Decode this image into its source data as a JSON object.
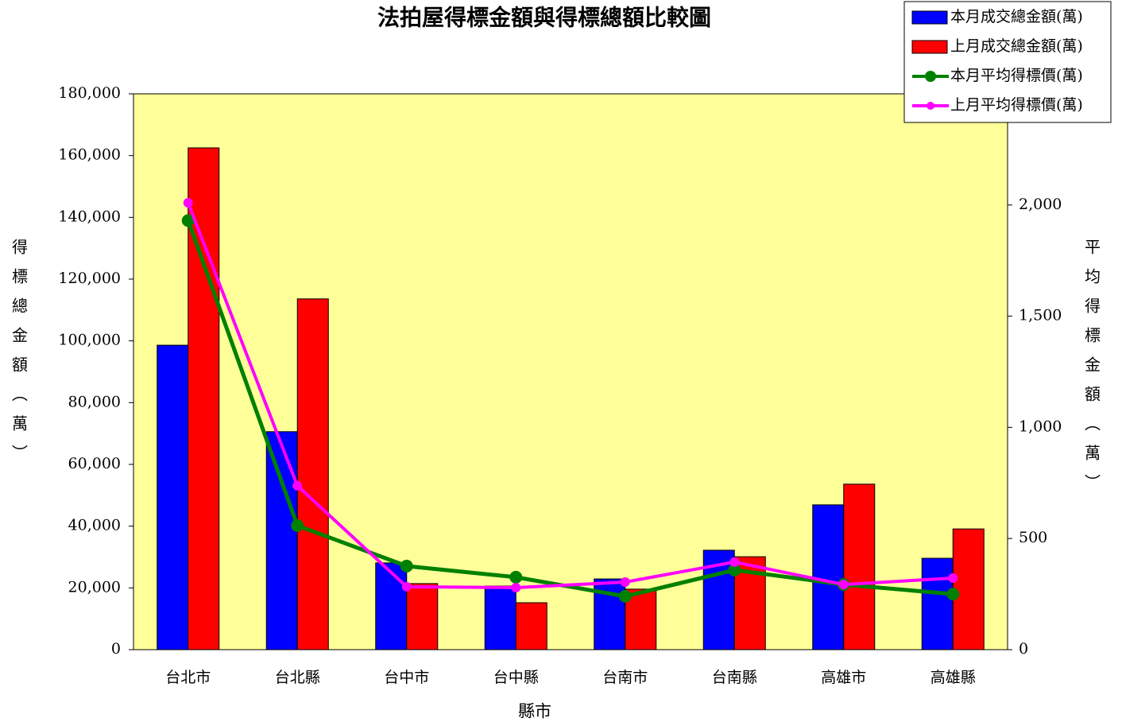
{
  "chart_data": {
    "type": "bar_line",
    "title": "法拍屋得標金額與得標總額比較圖",
    "x_label": "縣市",
    "y_label": "得標總金額（萬）",
    "y2_label": "平均得標金額（萬）",
    "categories": [
      "台北市",
      "台北縣",
      "台中市",
      "台中縣",
      "台南市",
      "台南縣",
      "高雄市",
      "高雄縣"
    ],
    "series": [
      {
        "name": "本月成交總金額(萬)",
        "type": "bar",
        "color": "#0000ff",
        "values": [
          98600,
          70600,
          28100,
          20600,
          22900,
          32200,
          46900,
          29600
        ]
      },
      {
        "name": "上月成交總金額(萬)",
        "type": "bar",
        "color": "#ff0000",
        "values": [
          162500,
          113600,
          21400,
          15200,
          19600,
          30100,
          53600,
          39100
        ]
      },
      {
        "name": "本月平均得標價(萬)",
        "type": "line",
        "axis": "y2",
        "color": "#008000",
        "values": [
          1930,
          558,
          376,
          326,
          240,
          358,
          293,
          250
        ]
      },
      {
        "name": "上月平均得標價(萬)",
        "type": "line",
        "axis": "y2",
        "color": "#ff00ff",
        "values": [
          2010,
          737,
          283,
          279,
          304,
          394,
          293,
          322
        ]
      }
    ],
    "ylim": [
      0,
      180000
    ],
    "yticks": [
      0,
      {
        "value": 20000,
        "label": "20,000"
      },
      {
        "value": 40000,
        "label": "40,000"
      },
      {
        "value": 60000,
        "label": "60,000"
      },
      {
        "value": 80000,
        "label": "80,000"
      },
      {
        "value": 100000,
        "label": "100,000"
      },
      {
        "value": 120000,
        "label": "120,000"
      },
      {
        "value": 140000,
        "label": "140,000"
      },
      {
        "value": 160000,
        "label": "160,000"
      },
      {
        "value": 180000,
        "label": "180,000"
      }
    ],
    "y2lim": [
      0,
      2500
    ],
    "y2ticks": [
      0,
      500,
      {
        "value": 1000,
        "label": "1,000"
      },
      {
        "value": 1500,
        "label": "1,500"
      },
      {
        "value": 2000,
        "label": "2,000"
      }
    ],
    "plot_background": "#ffff99",
    "legend": "top-right",
    "grid": false
  }
}
